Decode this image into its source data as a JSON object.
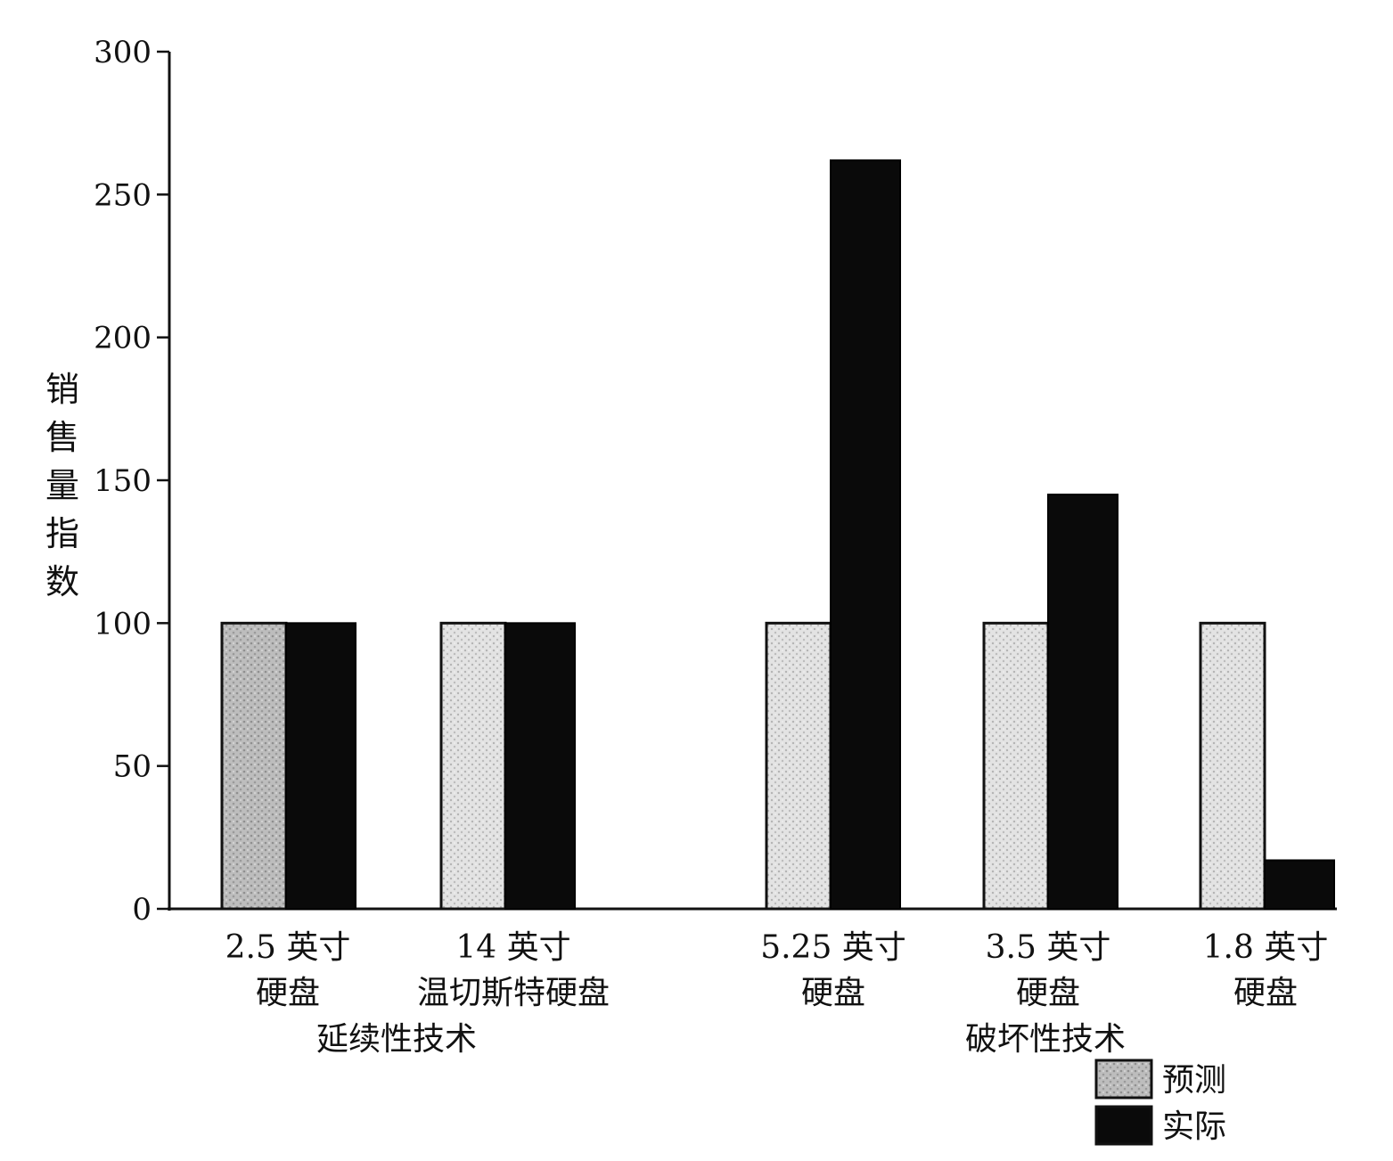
{
  "chart_data": {
    "type": "bar",
    "title": "",
    "ylabel": "销售量指数",
    "ylim": [
      0,
      300
    ],
    "yticks": [
      0,
      50,
      100,
      150,
      200,
      250,
      300
    ],
    "categories": [
      {
        "line1": "2.5 英寸",
        "line2": "硬盘"
      },
      {
        "line1": "14 英寸",
        "line2": "温切斯特硬盘"
      },
      {
        "line1": "5.25 英寸",
        "line2": "硬盘"
      },
      {
        "line1": "3.5 英寸",
        "line2": "硬盘"
      },
      {
        "line1": "1.8 英寸",
        "line2": "硬盘"
      }
    ],
    "groups": [
      {
        "label": "延续性技术",
        "categories": [
          0,
          1
        ]
      },
      {
        "label": "破坏性技术",
        "categories": [
          2,
          3,
          4
        ]
      }
    ],
    "series": [
      {
        "name": "预测",
        "values": [
          100,
          100,
          100,
          100,
          100
        ],
        "color": "#cfcfcf"
      },
      {
        "name": "实际",
        "values": [
          100,
          100,
          262,
          145,
          17
        ],
        "color": "#0a0a0a"
      }
    ],
    "grid": false,
    "legend": "bottom-right"
  }
}
